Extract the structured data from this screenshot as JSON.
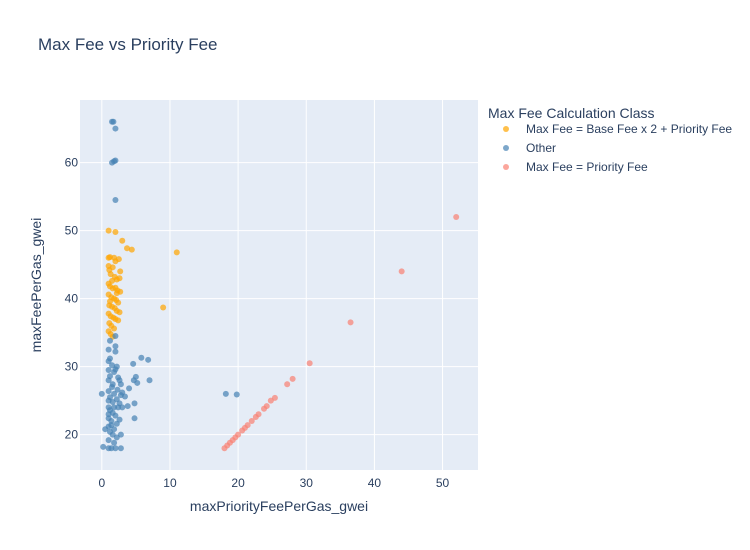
{
  "chart_data": {
    "type": "scatter",
    "title": "Max Fee vs Priority Fee",
    "xlabel": "maxPriorityFeePerGas_gwei",
    "ylabel": "maxFeePerGas_gwei",
    "xlim": [
      -3.2,
      55.2
    ],
    "ylim": [
      14.8,
      69.2
    ],
    "xticks": [
      0,
      10,
      20,
      30,
      40,
      50
    ],
    "yticks": [
      20,
      30,
      40,
      50,
      60
    ],
    "grid": true,
    "legend": {
      "title": "Max Fee Calculation Class",
      "placement": "right"
    },
    "series": [
      {
        "name": "Max Fee = Base Fee x 2 + Priority Fee",
        "color": "#FFA500",
        "points": [
          [
            1.0,
            50.0
          ],
          [
            2.0,
            49.8
          ],
          [
            3.0,
            48.5
          ],
          [
            3.7,
            47.4
          ],
          [
            4.4,
            47.2
          ],
          [
            11.0,
            46.8
          ],
          [
            1.0,
            46.0
          ],
          [
            1.2,
            46.1
          ],
          [
            1.8,
            46.0
          ],
          [
            2.0,
            45.5
          ],
          [
            2.5,
            45.8
          ],
          [
            1.0,
            44.8
          ],
          [
            1.1,
            44.2
          ],
          [
            1.3,
            43.6
          ],
          [
            1.9,
            43.2
          ],
          [
            2.2,
            42.8
          ],
          [
            2.6,
            43.0
          ],
          [
            1.0,
            42.2
          ],
          [
            1.2,
            41.8
          ],
          [
            1.6,
            41.5
          ],
          [
            2.0,
            41.6
          ],
          [
            2.3,
            41.2
          ],
          [
            2.7,
            41.0
          ],
          [
            1.0,
            40.6
          ],
          [
            1.4,
            40.2
          ],
          [
            1.8,
            40.0
          ],
          [
            2.1,
            39.8
          ],
          [
            2.4,
            39.4
          ],
          [
            1.1,
            39.0
          ],
          [
            1.5,
            38.8
          ],
          [
            1.9,
            38.6
          ],
          [
            2.2,
            38.2
          ],
          [
            2.6,
            38.0
          ],
          [
            9.0,
            38.7
          ],
          [
            1.0,
            37.8
          ],
          [
            1.3,
            37.4
          ],
          [
            1.7,
            37.2
          ],
          [
            2.0,
            37.0
          ],
          [
            2.4,
            36.8
          ],
          [
            1.1,
            36.4
          ],
          [
            1.4,
            36.0
          ],
          [
            1.8,
            35.6
          ],
          [
            1.0,
            35.2
          ],
          [
            1.3,
            34.8
          ],
          [
            1.6,
            34.4
          ],
          [
            1.2,
            39.6
          ],
          [
            1.5,
            42.6
          ],
          [
            2.7,
            44.0
          ],
          [
            1.6,
            44.6
          ],
          [
            2.2,
            40.8
          ]
        ]
      },
      {
        "name": "Other",
        "color": "#4682B4",
        "points": [
          [
            1.5,
            66.0
          ],
          [
            1.7,
            66.0
          ],
          [
            2.0,
            65.0
          ],
          [
            1.5,
            60.0
          ],
          [
            1.8,
            60.2
          ],
          [
            2.0,
            60.3
          ],
          [
            2.0,
            54.5
          ],
          [
            2.0,
            34.5
          ],
          [
            1.2,
            33.8
          ],
          [
            2.0,
            33.0
          ],
          [
            1.0,
            32.5
          ],
          [
            2.0,
            32.2
          ],
          [
            5.8,
            31.3
          ],
          [
            6.8,
            31.0
          ],
          [
            1.0,
            30.8
          ],
          [
            1.5,
            30.2
          ],
          [
            2.2,
            30.0
          ],
          [
            4.6,
            30.4
          ],
          [
            1.0,
            29.5
          ],
          [
            1.8,
            29.2
          ],
          [
            1.2,
            28.6
          ],
          [
            2.4,
            28.4
          ],
          [
            5.0,
            28.5
          ],
          [
            7.0,
            28.0
          ],
          [
            1.0,
            28.0
          ],
          [
            2.6,
            28.0
          ],
          [
            4.7,
            28.0
          ],
          [
            5.2,
            27.6
          ],
          [
            1.5,
            27.0
          ],
          [
            2.3,
            26.6
          ],
          [
            3.0,
            26.2
          ],
          [
            4.0,
            26.8
          ],
          [
            1.0,
            26.4
          ],
          [
            1.8,
            26.0
          ],
          [
            0.0,
            26.0
          ],
          [
            18.2,
            26.0
          ],
          [
            19.8,
            25.9
          ],
          [
            1.2,
            25.5
          ],
          [
            2.2,
            25.2
          ],
          [
            3.4,
            25.6
          ],
          [
            1.0,
            25.0
          ],
          [
            1.6,
            24.8
          ],
          [
            2.6,
            24.6
          ],
          [
            4.8,
            24.6
          ],
          [
            3.8,
            24.2
          ],
          [
            1.0,
            24.0
          ],
          [
            1.8,
            24.0
          ],
          [
            2.4,
            24.0
          ],
          [
            3.0,
            24.0
          ],
          [
            1.2,
            23.6
          ],
          [
            1.6,
            23.2
          ],
          [
            2.0,
            22.8
          ],
          [
            1.0,
            22.4
          ],
          [
            4.8,
            22.4
          ],
          [
            1.4,
            22.0
          ],
          [
            2.2,
            21.6
          ],
          [
            1.0,
            21.2
          ],
          [
            1.8,
            20.8
          ],
          [
            0.5,
            20.8
          ],
          [
            2.8,
            20.0
          ],
          [
            1.2,
            20.4
          ],
          [
            1.6,
            20.0
          ],
          [
            2.2,
            19.6
          ],
          [
            1.0,
            19.2
          ],
          [
            1.8,
            18.8
          ],
          [
            0.2,
            18.2
          ],
          [
            1.0,
            18.0
          ],
          [
            1.4,
            18.0
          ],
          [
            2.0,
            18.0
          ],
          [
            2.8,
            18.0
          ],
          [
            1.6,
            27.4
          ],
          [
            2.0,
            29.6
          ],
          [
            2.8,
            25.8
          ],
          [
            1.4,
            21.4
          ],
          [
            2.6,
            22.2
          ],
          [
            1.2,
            31.2
          ],
          [
            1.0,
            23.0
          ],
          [
            2.8,
            27.4
          ]
        ]
      },
      {
        "name": "Max Fee = Priority Fee",
        "color": "#FA8072",
        "points": [
          [
            52.0,
            52.0
          ],
          [
            44.0,
            44.0
          ],
          [
            36.5,
            36.5
          ],
          [
            30.5,
            30.5
          ],
          [
            28.0,
            28.2
          ],
          [
            27.2,
            27.4
          ],
          [
            25.4,
            25.4
          ],
          [
            24.8,
            25.0
          ],
          [
            24.2,
            24.2
          ],
          [
            23.8,
            23.8
          ],
          [
            23.0,
            23.0
          ],
          [
            22.6,
            22.6
          ],
          [
            22.0,
            22.0
          ],
          [
            21.4,
            21.4
          ],
          [
            21.0,
            21.0
          ],
          [
            20.6,
            20.6
          ],
          [
            20.0,
            20.0
          ],
          [
            19.6,
            19.6
          ],
          [
            19.2,
            19.2
          ],
          [
            18.8,
            18.8
          ],
          [
            18.4,
            18.4
          ],
          [
            18.0,
            18.0
          ]
        ]
      }
    ]
  }
}
